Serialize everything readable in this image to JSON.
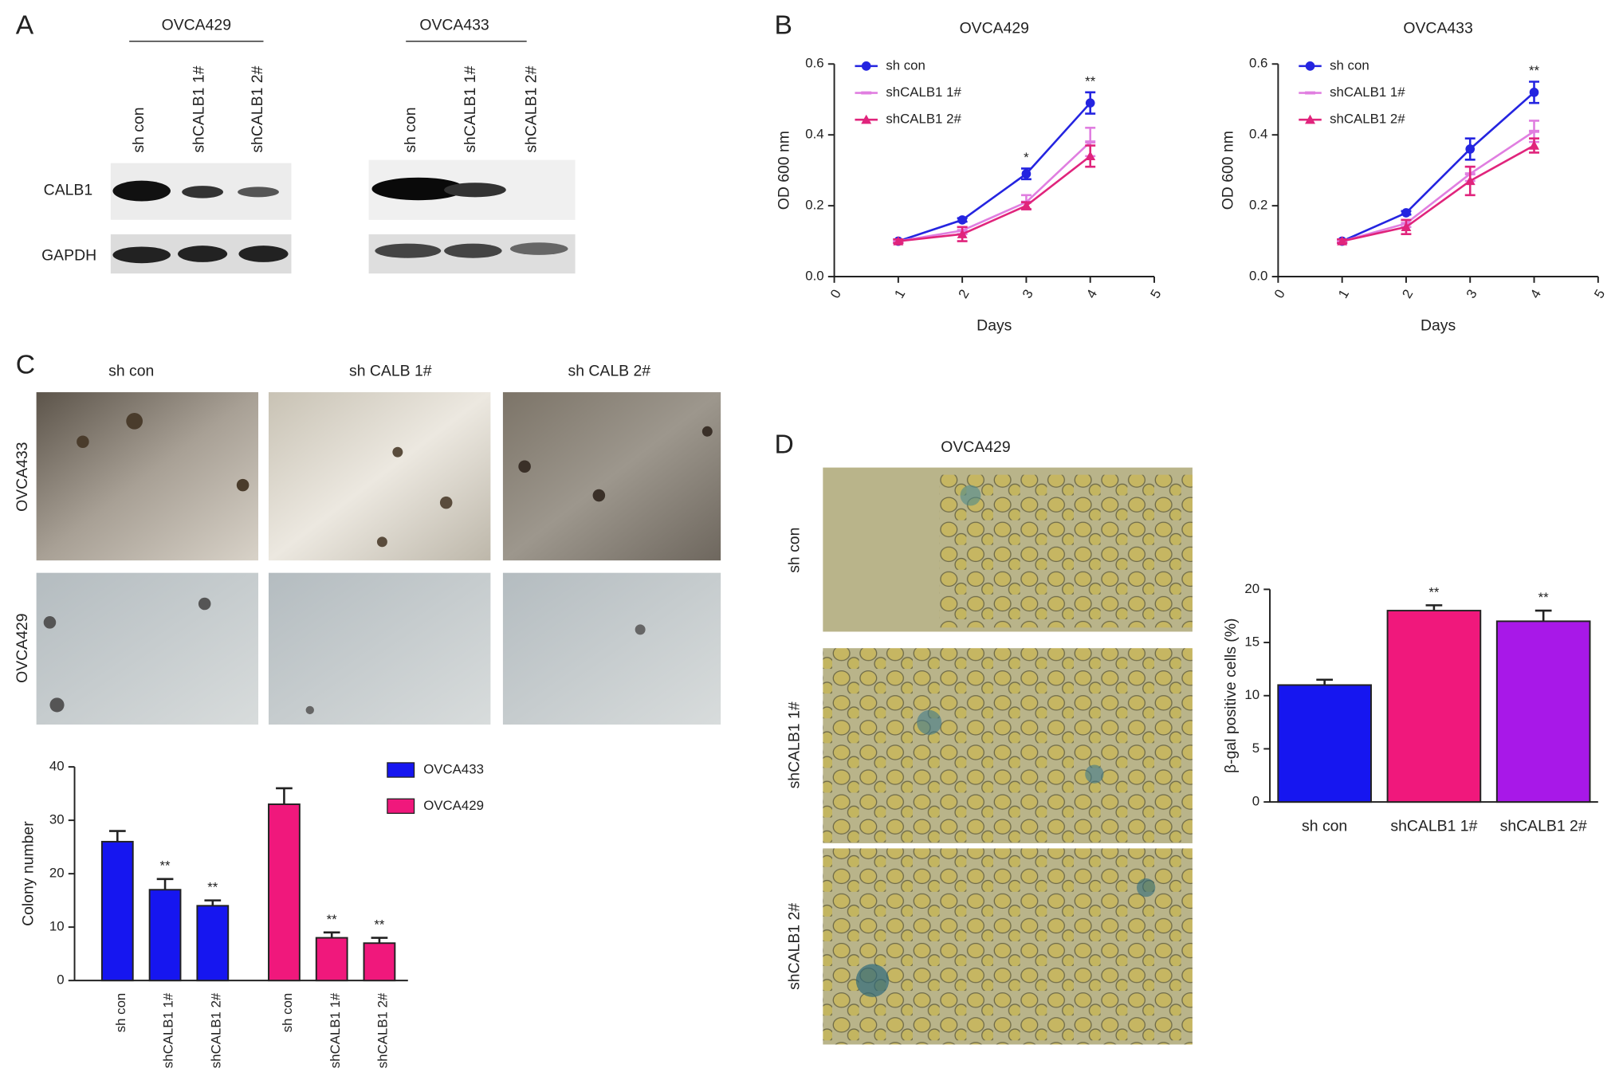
{
  "panels": {
    "labels": [
      "A",
      "B",
      "C",
      "D"
    ]
  },
  "western_blot": {
    "groups": [
      {
        "name": "OVCA429",
        "lanes": [
          "sh con",
          "shCALB1 1#",
          "shCALB1 2#"
        ]
      },
      {
        "name": "OVCA433",
        "lanes": [
          "sh con",
          "shCALB1 1#",
          "shCALB1 2#"
        ]
      }
    ],
    "rows": [
      "CALB1",
      "GAPDH"
    ]
  },
  "colony_images": {
    "columns": [
      "sh con",
      "sh CALB 1#",
      "sh CALB 2#"
    ],
    "rows": [
      "OVCA433",
      "OVCA429"
    ]
  },
  "sa_bgal_images": {
    "title": "OVCA429",
    "rows": [
      "sh con",
      "shCALB1 1#",
      "shCALB1 2#"
    ]
  },
  "chart_data": [
    {
      "type": "line",
      "title": "OVCA429",
      "xlabel": "Days",
      "ylabel": "OD 600 nm",
      "x": [
        1,
        2,
        3,
        4
      ],
      "xlim": [
        0,
        5
      ],
      "xticks": [
        0,
        1,
        2,
        3,
        4,
        5
      ],
      "ylim": [
        0,
        0.6
      ],
      "yticks": [
        {
          "value": 0,
          "label": "0.0"
        },
        0.2,
        0.4,
        0.6
      ],
      "legend": "upper left",
      "significance": [
        null,
        null,
        "*",
        "**"
      ],
      "series": [
        {
          "name": "sh con",
          "color": "#2424e0",
          "marker": "circle",
          "values": [
            0.1,
            0.16,
            0.29,
            0.49
          ],
          "errors": [
            0.005,
            0.005,
            0.015,
            0.03
          ]
        },
        {
          "name": "shCALB1 1#",
          "color": "#e07ee0",
          "marker": "dash",
          "values": [
            0.1,
            0.13,
            0.21,
            0.38
          ],
          "errors": [
            0.005,
            0.01,
            0.02,
            0.04
          ]
        },
        {
          "name": "shCALB1 2#",
          "color": "#e0247c",
          "marker": "triangle",
          "values": [
            0.1,
            0.12,
            0.2,
            0.34
          ],
          "errors": [
            0.005,
            0.02,
            0.01,
            0.03
          ]
        }
      ]
    },
    {
      "type": "line",
      "title": "OVCA433",
      "xlabel": "Days",
      "ylabel": "OD 600 nm",
      "x": [
        1,
        2,
        3,
        4
      ],
      "xlim": [
        0,
        5
      ],
      "xticks": [
        0,
        1,
        2,
        3,
        4,
        5
      ],
      "ylim": [
        0,
        0.6
      ],
      "yticks": [
        {
          "value": 0,
          "label": "0.0"
        },
        0.2,
        0.4,
        0.6
      ],
      "legend": "upper left",
      "significance": [
        null,
        null,
        null,
        "**"
      ],
      "series": [
        {
          "name": "sh con",
          "color": "#2424e0",
          "marker": "circle",
          "values": [
            0.1,
            0.18,
            0.36,
            0.52
          ],
          "errors": [
            0.005,
            0.005,
            0.03,
            0.03
          ]
        },
        {
          "name": "shCALB1 1#",
          "color": "#e07ee0",
          "marker": "dash",
          "values": [
            0.1,
            0.15,
            0.29,
            0.41
          ],
          "errors": [
            0.005,
            0.01,
            0.02,
            0.03
          ]
        },
        {
          "name": "shCALB1 2#",
          "color": "#e0247c",
          "marker": "triangle",
          "values": [
            0.1,
            0.14,
            0.27,
            0.37
          ],
          "errors": [
            0.005,
            0.02,
            0.04,
            0.02
          ]
        }
      ]
    },
    {
      "type": "bar",
      "ylabel": "Colony number",
      "categories": [
        "sh con",
        "shCALB1 1#",
        "shCALB1 2#"
      ],
      "ylim": [
        0,
        40
      ],
      "yticks": [
        0,
        10,
        20,
        30,
        40
      ],
      "legend": "right",
      "series": [
        {
          "name": "OVCA433",
          "color": "#1616f0",
          "values": [
            26,
            17,
            14
          ],
          "errors": [
            2,
            2,
            1
          ],
          "significance": [
            null,
            "**",
            "**"
          ]
        },
        {
          "name": "OVCA429",
          "color": "#f0187c",
          "values": [
            33,
            8,
            7
          ],
          "errors": [
            3,
            1,
            1
          ],
          "significance": [
            null,
            "**",
            "**"
          ]
        }
      ]
    },
    {
      "type": "bar",
      "ylabel": "β-gal positive cells (%)",
      "categories": [
        "sh con",
        "shCALB1 1#",
        "shCALB1 2#"
      ],
      "values": [
        11,
        18,
        17
      ],
      "errors": [
        0.5,
        0.5,
        1
      ],
      "colors": [
        "#1616f0",
        "#f0187c",
        "#a818e8"
      ],
      "significance": [
        null,
        "**",
        "**"
      ],
      "ylim": [
        0,
        20
      ],
      "yticks": [
        0,
        5,
        10,
        15,
        20
      ]
    }
  ]
}
